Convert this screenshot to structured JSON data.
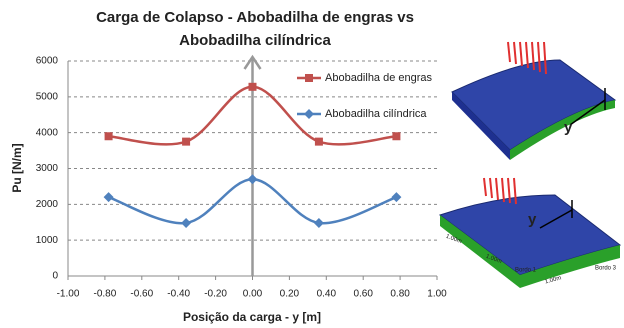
{
  "chart_data": {
    "type": "line",
    "title": "Carga de Colapso - Abobadilha de engras vs Abobadilha cilíndrica",
    "x_label": "Posição da carga - y [m]",
    "y_label": "Pu [N/m]",
    "x": [
      -0.78,
      -0.36,
      0,
      0.36,
      0.78
    ],
    "series": [
      {
        "name": "Abobadilha de engras",
        "color": "#c0504d",
        "marker": "square",
        "values": [
          3900,
          3750,
          5280,
          3750,
          3900
        ]
      },
      {
        "name": "Abobadilha cilíndrica",
        "color": "#4f81bd",
        "marker": "diamond",
        "values": [
          2200,
          1480,
          2700,
          1480,
          2200
        ]
      }
    ],
    "xlim": [
      -1,
      1
    ],
    "xticks": [
      {
        "value": -1,
        "label": "-1.00"
      },
      {
        "value": -0.8,
        "label": "-0.80"
      },
      {
        "value": -0.6,
        "label": "-0.60"
      },
      {
        "value": -0.4,
        "label": "-0.40"
      },
      {
        "value": -0.2,
        "label": "-0.20"
      },
      {
        "value": 0,
        "label": "0.00"
      },
      {
        "value": 0.2,
        "label": "0.20"
      },
      {
        "value": 0.4,
        "label": "0.40"
      },
      {
        "value": 0.6,
        "label": "0.60"
      },
      {
        "value": 0.8,
        "label": "0.80"
      },
      {
        "value": 1,
        "label": "1.00"
      }
    ],
    "ylim": [
      0,
      6000
    ],
    "yticks": [
      0,
      1000,
      2000,
      3000,
      4000,
      5000,
      6000
    ],
    "grid": true,
    "legend": "upper right"
  },
  "illustrations": [
    {
      "labels": [
        "y"
      ]
    },
    {
      "labels": [
        "y",
        "1.00m",
        "1.00m",
        "1.00m",
        "Bordo 1",
        "Bordo 3"
      ]
    }
  ]
}
